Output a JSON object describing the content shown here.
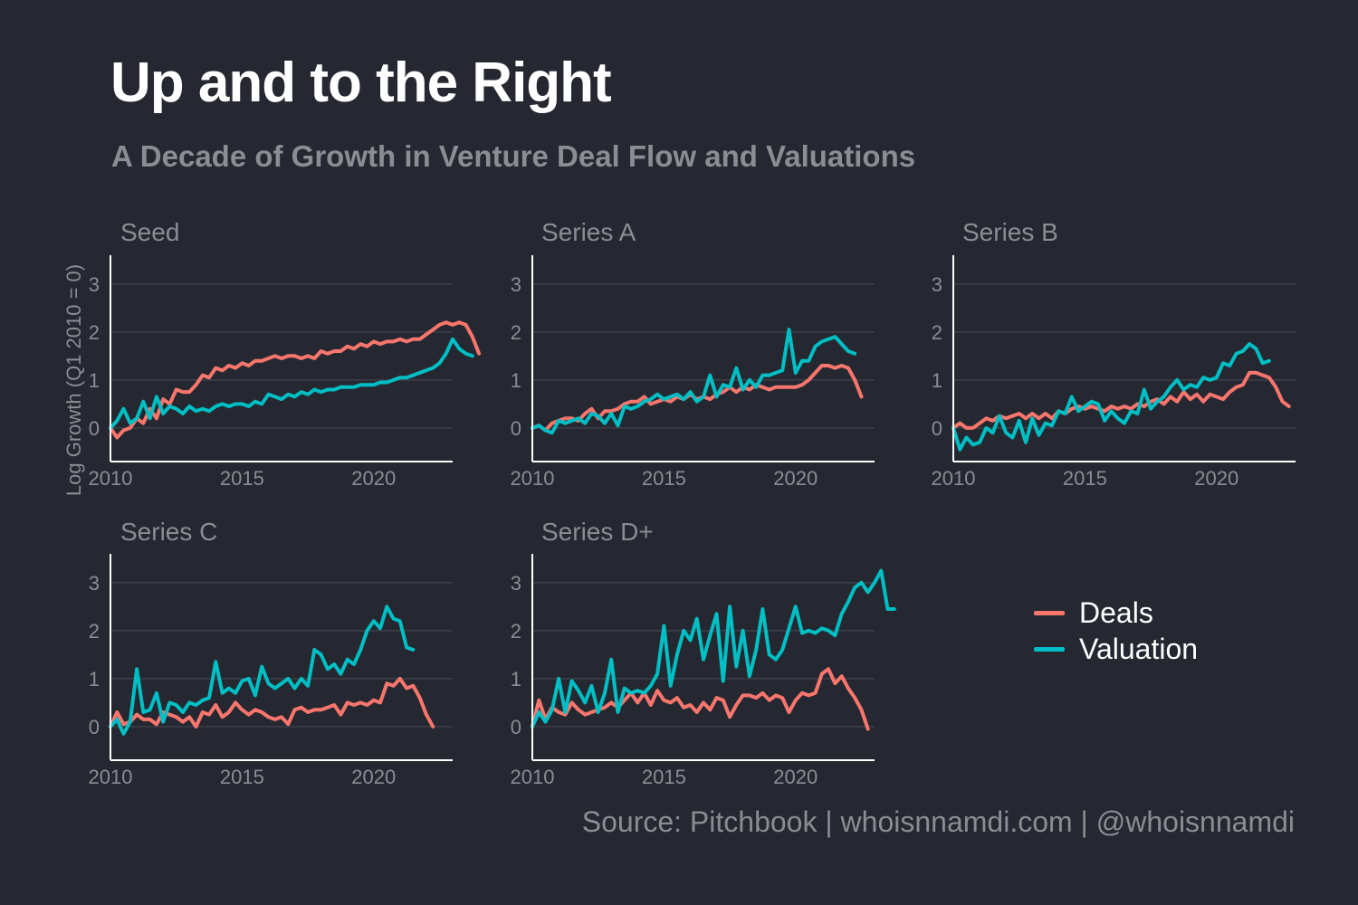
{
  "header": {
    "title": "Up and to the Right",
    "subtitle": "A Decade of Growth in Venture Deal Flow and Valuations"
  },
  "caption": "Source: Pitchbook | whoisnnamdi.com | @whoisnnamdi",
  "colors": {
    "deals": "#f8766d",
    "valuation": "#00bfc4",
    "grid": "#3d4049",
    "axis": "#ffffff",
    "text": "#8a8d94"
  },
  "legend": [
    {
      "key": "deals",
      "label": "Deals"
    },
    {
      "key": "valuation",
      "label": "Valuation"
    }
  ],
  "chart_data": {
    "type": "line",
    "ylabel": "Log Growth (Q1 2010 = 0)",
    "xlim": [
      2010,
      2023
    ],
    "ylim": [
      -0.7,
      3.6
    ],
    "x_ticks": [
      2010,
      2015,
      2020
    ],
    "y_ticks": [
      0,
      1,
      2,
      3
    ],
    "grid": true,
    "legend_position": "right",
    "x_start": 2010.0,
    "x_step": 0.25,
    "panels": [
      {
        "name": "Seed",
        "series": [
          {
            "name": "Deals",
            "values": [
              0.0,
              -0.2,
              -0.05,
              0.0,
              0.2,
              0.1,
              0.4,
              0.2,
              0.6,
              0.5,
              0.8,
              0.75,
              0.75,
              0.9,
              1.1,
              1.05,
              1.25,
              1.2,
              1.3,
              1.25,
              1.35,
              1.3,
              1.4,
              1.4,
              1.45,
              1.5,
              1.45,
              1.5,
              1.5,
              1.45,
              1.5,
              1.45,
              1.6,
              1.55,
              1.6,
              1.6,
              1.7,
              1.65,
              1.75,
              1.7,
              1.8,
              1.75,
              1.8,
              1.8,
              1.85,
              1.8,
              1.85,
              1.85,
              1.95,
              2.05,
              2.15,
              2.2,
              2.15,
              2.2,
              2.15,
              1.9,
              1.55
            ]
          },
          {
            "name": "Valuation",
            "values": [
              0.0,
              0.15,
              0.4,
              0.1,
              0.2,
              0.55,
              0.2,
              0.65,
              0.3,
              0.45,
              0.4,
              0.3,
              0.45,
              0.35,
              0.4,
              0.35,
              0.45,
              0.5,
              0.45,
              0.5,
              0.5,
              0.45,
              0.55,
              0.5,
              0.7,
              0.65,
              0.6,
              0.7,
              0.65,
              0.75,
              0.7,
              0.8,
              0.75,
              0.8,
              0.8,
              0.85,
              0.85,
              0.85,
              0.9,
              0.9,
              0.9,
              0.95,
              0.95,
              1.0,
              1.05,
              1.05,
              1.1,
              1.15,
              1.2,
              1.25,
              1.35,
              1.55,
              1.85,
              1.65,
              1.55,
              1.5
            ]
          }
        ]
      },
      {
        "name": "Series A",
        "series": [
          {
            "name": "Deals",
            "values": [
              0.0,
              0.05,
              -0.05,
              0.1,
              0.15,
              0.2,
              0.2,
              0.15,
              0.3,
              0.4,
              0.2,
              0.35,
              0.35,
              0.4,
              0.5,
              0.55,
              0.55,
              0.65,
              0.5,
              0.55,
              0.6,
              0.55,
              0.65,
              0.6,
              0.7,
              0.6,
              0.65,
              0.6,
              0.7,
              0.75,
              0.85,
              0.75,
              0.85,
              0.8,
              0.9,
              0.85,
              0.8,
              0.85,
              0.85,
              0.85,
              0.85,
              0.9,
              1.0,
              1.15,
              1.3,
              1.3,
              1.25,
              1.3,
              1.25,
              1.0,
              0.65
            ]
          },
          {
            "name": "Valuation",
            "values": [
              0.0,
              0.05,
              -0.05,
              -0.1,
              0.15,
              0.1,
              0.15,
              0.2,
              0.1,
              0.3,
              0.25,
              0.1,
              0.3,
              0.05,
              0.45,
              0.4,
              0.45,
              0.55,
              0.6,
              0.7,
              0.6,
              0.65,
              0.7,
              0.6,
              0.75,
              0.55,
              0.65,
              1.1,
              0.65,
              0.9,
              0.85,
              1.25,
              0.8,
              1.0,
              0.85,
              1.1,
              1.1,
              1.15,
              1.2,
              2.05,
              1.15,
              1.4,
              1.4,
              1.7,
              1.8,
              1.85,
              1.9,
              1.75,
              1.6,
              1.55
            ]
          }
        ]
      },
      {
        "name": "Series B",
        "series": [
          {
            "name": "Deals",
            "values": [
              0.0,
              0.1,
              0.0,
              0.0,
              0.1,
              0.2,
              0.15,
              0.25,
              0.2,
              0.25,
              0.3,
              0.2,
              0.3,
              0.2,
              0.3,
              0.2,
              0.35,
              0.3,
              0.4,
              0.45,
              0.4,
              0.45,
              0.4,
              0.35,
              0.45,
              0.4,
              0.45,
              0.4,
              0.5,
              0.45,
              0.55,
              0.6,
              0.5,
              0.65,
              0.55,
              0.75,
              0.6,
              0.7,
              0.55,
              0.7,
              0.65,
              0.6,
              0.75,
              0.85,
              0.9,
              1.15,
              1.15,
              1.1,
              1.05,
              0.85,
              0.55,
              0.45
            ]
          },
          {
            "name": "Valuation",
            "values": [
              0.0,
              -0.45,
              -0.2,
              -0.35,
              -0.3,
              0.0,
              -0.1,
              0.25,
              -0.1,
              -0.2,
              0.15,
              -0.3,
              0.2,
              -0.15,
              0.1,
              0.05,
              0.35,
              0.3,
              0.65,
              0.35,
              0.45,
              0.55,
              0.5,
              0.15,
              0.35,
              0.2,
              0.1,
              0.35,
              0.3,
              0.8,
              0.4,
              0.55,
              0.65,
              0.85,
              1.0,
              0.8,
              0.9,
              0.85,
              1.05,
              1.0,
              1.05,
              1.35,
              1.3,
              1.55,
              1.6,
              1.75,
              1.65,
              1.35,
              1.4
            ]
          }
        ]
      },
      {
        "name": "Series C",
        "series": [
          {
            "name": "Deals",
            "values": [
              0.0,
              0.3,
              0.05,
              0.1,
              0.25,
              0.15,
              0.15,
              0.05,
              0.3,
              0.25,
              0.2,
              0.1,
              0.2,
              0.0,
              0.3,
              0.25,
              0.45,
              0.2,
              0.3,
              0.5,
              0.35,
              0.25,
              0.35,
              0.3,
              0.2,
              0.15,
              0.2,
              0.05,
              0.35,
              0.4,
              0.3,
              0.35,
              0.35,
              0.4,
              0.45,
              0.25,
              0.5,
              0.45,
              0.5,
              0.45,
              0.55,
              0.5,
              0.9,
              0.85,
              1.0,
              0.8,
              0.85,
              0.6,
              0.25,
              0.0
            ]
          },
          {
            "name": "Valuation",
            "values": [
              0.0,
              0.15,
              -0.15,
              0.1,
              1.2,
              0.3,
              0.35,
              0.7,
              0.1,
              0.5,
              0.45,
              0.3,
              0.5,
              0.45,
              0.55,
              0.6,
              1.35,
              0.7,
              0.8,
              0.7,
              0.95,
              1.0,
              0.65,
              1.25,
              0.9,
              0.8,
              0.9,
              1.0,
              0.8,
              1.0,
              0.85,
              1.6,
              1.5,
              1.2,
              1.3,
              1.1,
              1.4,
              1.3,
              1.6,
              2.0,
              2.2,
              2.05,
              2.5,
              2.25,
              2.2,
              1.65,
              1.6
            ]
          }
        ]
      },
      {
        "name": "Series D+",
        "series": [
          {
            "name": "Deals",
            "values": [
              0.0,
              0.55,
              0.15,
              0.4,
              0.3,
              0.25,
              0.5,
              0.35,
              0.25,
              0.3,
              0.35,
              0.4,
              0.5,
              0.4,
              0.55,
              0.7,
              0.5,
              0.7,
              0.45,
              0.75,
              0.55,
              0.5,
              0.6,
              0.4,
              0.45,
              0.3,
              0.5,
              0.35,
              0.6,
              0.55,
              0.2,
              0.45,
              0.65,
              0.65,
              0.6,
              0.7,
              0.55,
              0.65,
              0.6,
              0.3,
              0.55,
              0.7,
              0.65,
              0.7,
              1.1,
              1.2,
              0.9,
              1.05,
              0.8,
              0.6,
              0.35,
              -0.05
            ]
          },
          {
            "name": "Valuation",
            "values": [
              0.0,
              0.3,
              0.1,
              0.35,
              1.0,
              0.3,
              0.95,
              0.75,
              0.5,
              0.85,
              0.3,
              0.7,
              1.4,
              0.3,
              0.8,
              0.7,
              0.75,
              0.7,
              0.85,
              1.1,
              2.1,
              0.85,
              1.5,
              2.0,
              1.8,
              2.25,
              1.4,
              1.9,
              2.35,
              0.95,
              2.5,
              1.25,
              2.0,
              1.05,
              1.6,
              2.45,
              1.5,
              1.4,
              1.6,
              2.05,
              2.5,
              1.95,
              2.0,
              1.95,
              2.05,
              2.0,
              1.9,
              2.35,
              2.6,
              2.9,
              3.0,
              2.8,
              3.0,
              3.25,
              2.45,
              2.45
            ]
          }
        ]
      }
    ]
  }
}
